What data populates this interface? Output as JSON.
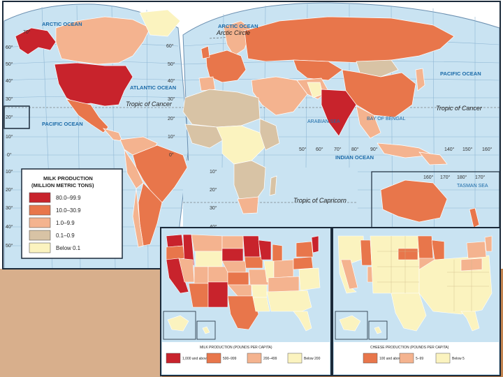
{
  "colors": {
    "ocean": "#c9e3f2",
    "very_high": "#c8232c",
    "high": "#e8764b",
    "medium": "#f4b38f",
    "low": "#d8c3a5",
    "lowest": "#fbf3bf",
    "frame": "#1b2a3a",
    "wood": "#c98a55"
  },
  "world_map": {
    "ocean_labels": [
      "ATLANTIC OCEAN",
      "PACIFIC OCEAN",
      "PACIFIC OCEAN",
      "INDIAN OCEAN",
      "ARCTIC OCEAN",
      "ARCTIC OCEAN",
      "ARABIAN SEA",
      "BAY OF BENGAL",
      "TASMAN SEA"
    ],
    "line_labels": [
      "Arctic Circle",
      "Tropic of Cancer",
      "Tropic of Cancer",
      "Tropic of Capricorn"
    ],
    "latitudes_left": [
      "70°",
      "60°",
      "50°",
      "40°",
      "30°",
      "20°",
      "10°",
      "0°",
      "10°",
      "20°",
      "30°",
      "40°",
      "50°"
    ],
    "latitudes_right": [
      "60°",
      "50°",
      "40°",
      "30°",
      "20°",
      "10°",
      "0°",
      "10°",
      "20°",
      "30°",
      "40°"
    ],
    "longitudes": [
      "50°",
      "60°",
      "70°",
      "80°",
      "90°",
      "140°",
      "150°",
      "160°",
      "170°",
      "180°",
      "170°",
      "160°"
    ]
  },
  "legend": {
    "title_line1": "MILK PRODUCTION",
    "title_line2": "(MILLION METRIC TONS)",
    "items": [
      {
        "label": "80.0–99.9",
        "color": "#c8232c"
      },
      {
        "label": "10.0–30.9",
        "color": "#e8764b"
      },
      {
        "label": "1.0–9.9",
        "color": "#f4b38f"
      },
      {
        "label": "0.1–0.9",
        "color": "#d8c3a5"
      },
      {
        "label": "Below 0.1",
        "color": "#fbf3bf"
      }
    ]
  },
  "us_milk_map": {
    "title": "MILK PRODUCTION (POUNDS PER CAPITA)",
    "legend": [
      {
        "label": "1,000 and above",
        "color": "#c8232c"
      },
      {
        "label": "500–999",
        "color": "#e8764b"
      },
      {
        "label": "200–499",
        "color": "#f4b38f"
      },
      {
        "label": "Below 200",
        "color": "#fbf3bf"
      }
    ]
  },
  "us_cheese_map": {
    "title": "CHEESE PRODUCTION (POUNDS PER CAPITA)",
    "legend": [
      {
        "label": "100 and above",
        "color": "#e8764b"
      },
      {
        "label": "5–99",
        "color": "#f4b38f"
      },
      {
        "label": "Below 5",
        "color": "#fbf3bf"
      }
    ]
  }
}
